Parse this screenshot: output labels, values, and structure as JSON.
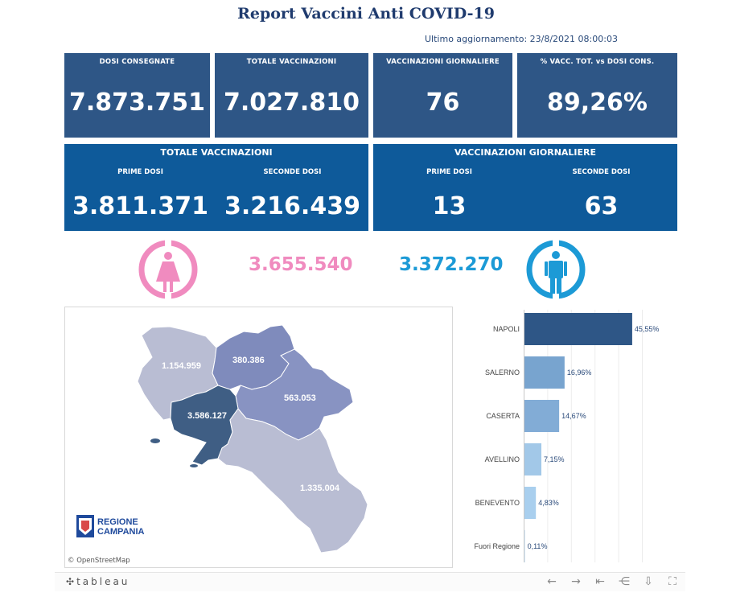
{
  "header": {
    "title": "Report Vaccini Anti COVID-19",
    "updated": "Ultimo aggiornamento: 23/8/2021 08:00:03"
  },
  "kpis": [
    {
      "label": "DOSI  CONSEGNATE",
      "value": "7.873.751"
    },
    {
      "label": "TOTALE VACCINAZIONI",
      "value": "7.027.810"
    },
    {
      "label": "VACCINAZIONI GIORNALIERE",
      "value": "76"
    },
    {
      "label": "% VACC. TOT. vs DOSI CONS.",
      "value": "89,26%"
    }
  ],
  "totals": {
    "title": "TOTALE VACCINAZIONI",
    "first_label": "PRIME DOSI",
    "first_value": "3.811.371",
    "second_label": "SECONDE DOSI",
    "second_value": "3.216.439"
  },
  "daily": {
    "title": "VACCINAZIONI GIORNALIERE",
    "first_label": "PRIME DOSI",
    "first_value": "13",
    "second_label": "SECONDE DOSI",
    "second_value": "63"
  },
  "gender": {
    "female_value": "3.655.540",
    "female_color": "#f08bbf",
    "female_icon": "female-icon",
    "male_value": "3.372.270",
    "male_color": "#1c9ad6",
    "male_icon": "male-icon"
  },
  "map": {
    "provinces": [
      {
        "name": "Caserta",
        "value": "1.154.959",
        "color": "#b9bdd3"
      },
      {
        "name": "Benevento",
        "value": "380.386",
        "color": "#7f8bbc"
      },
      {
        "name": "Avellino",
        "value": "563.053",
        "color": "#8893c2"
      },
      {
        "name": "Napoli",
        "value": "3.586.127",
        "color": "#3f5e84"
      },
      {
        "name": "Salerno",
        "value": "1.335.004",
        "color": "#b9bdd3"
      }
    ],
    "logo_line1": "REGIONE",
    "logo_line2": "CAMPANIA",
    "attribution": "© OpenStreetMap"
  },
  "chart_data": {
    "type": "bar",
    "orientation": "horizontal",
    "categories": [
      "NAPOLI",
      "SALERNO",
      "CASERTA",
      "AVELLINO",
      "BENEVENTO",
      "Fuori Regione"
    ],
    "values": [
      45.55,
      16.96,
      14.67,
      7.15,
      4.83,
      0.11
    ],
    "value_labels": [
      "45,55%",
      "16,96%",
      "14,67%",
      "7,15%",
      "4,83%",
      "0,11%"
    ],
    "colors": [
      "#2e5686",
      "#78a4cf",
      "#82acd6",
      "#a2c8e8",
      "#a9cfee",
      "#b8d8f2"
    ],
    "xlim": [
      0,
      50
    ]
  },
  "footer": {
    "logo": "tableau",
    "icons": [
      "undo-icon",
      "redo-icon",
      "revert-icon",
      "share-icon",
      "download-icon",
      "fullscreen-icon"
    ]
  }
}
